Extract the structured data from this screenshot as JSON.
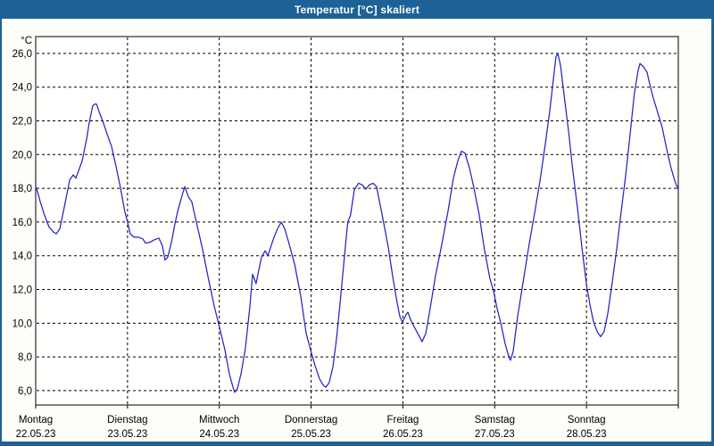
{
  "window": {
    "title": "Temperatur [°C] skaliert",
    "titlebar_color": "#1d6296",
    "border_color": "#1d6296",
    "client_color": "#fdfdfa"
  },
  "chart_data": {
    "type": "line",
    "title": "Temperatur [°C] skaliert",
    "ylabel": "°C",
    "xlabel": "",
    "y_ticks": [
      26,
      24,
      22,
      20,
      18,
      16,
      14,
      12,
      10,
      8,
      6
    ],
    "y_tick_labels": [
      "26,0",
      "24,0",
      "22,0",
      "20,0",
      "18,0",
      "16,0",
      "14,0",
      "12,0",
      "10,0",
      "8,0",
      "6,0"
    ],
    "ylim": [
      5.15,
      27.0
    ],
    "x_unit": "hours",
    "xlim": [
      0,
      168
    ],
    "grid": {
      "horizontal": "dashed",
      "vertical": "dashed at day boundaries"
    },
    "legend": "none",
    "line_color": "#2424c8",
    "x_day_labels": [
      {
        "name": "Montag",
        "date": "22.05.23"
      },
      {
        "name": "Dienstag",
        "date": "23.05.23"
      },
      {
        "name": "Mittwoch",
        "date": "24.05.23"
      },
      {
        "name": "Donnerstag",
        "date": "25.05.23"
      },
      {
        "name": "Freitag",
        "date": "26.05.23"
      },
      {
        "name": "Samstag",
        "date": "27.05.23"
      },
      {
        "name": "Sonntag",
        "date": "28.05.23"
      }
    ],
    "series": [
      {
        "name": "Temperatur",
        "points": [
          [
            0,
            18.1
          ],
          [
            0.6,
            17.7
          ],
          [
            1.2,
            17.2
          ],
          [
            2.3,
            16.4
          ],
          [
            3.5,
            15.7
          ],
          [
            4.7,
            15.4
          ],
          [
            5.4,
            15.3
          ],
          [
            6.3,
            15.6
          ],
          [
            7.5,
            16.9
          ],
          [
            8.9,
            18.5
          ],
          [
            9.8,
            18.8
          ],
          [
            10.5,
            18.6
          ],
          [
            12.1,
            19.6
          ],
          [
            13.3,
            20.9
          ],
          [
            14,
            21.9
          ],
          [
            14.9,
            22.9
          ],
          [
            15.5,
            23.0
          ],
          [
            15.9,
            23.0
          ],
          [
            16.8,
            22.4
          ],
          [
            17.5,
            22.0
          ],
          [
            18.7,
            21.2
          ],
          [
            19.8,
            20.5
          ],
          [
            21,
            19.3
          ],
          [
            22.2,
            18.0
          ],
          [
            23.3,
            16.6
          ],
          [
            24,
            16.0
          ],
          [
            24.7,
            15.3
          ],
          [
            25.7,
            15.1
          ],
          [
            26.8,
            15.1
          ],
          [
            28,
            15.0
          ],
          [
            28.7,
            14.75
          ],
          [
            29.9,
            14.8
          ],
          [
            31,
            14.95
          ],
          [
            32.2,
            15.05
          ],
          [
            33.1,
            14.6
          ],
          [
            33.8,
            13.75
          ],
          [
            34.5,
            13.9
          ],
          [
            35.5,
            14.8
          ],
          [
            36.4,
            15.9
          ],
          [
            37.3,
            16.8
          ],
          [
            38.3,
            17.6
          ],
          [
            39,
            18.1
          ],
          [
            39.9,
            17.5
          ],
          [
            40.8,
            17.2
          ],
          [
            42,
            16.0
          ],
          [
            43.6,
            14.4
          ],
          [
            45,
            12.8
          ],
          [
            46.7,
            11.0
          ],
          [
            48,
            9.8
          ],
          [
            49.5,
            8.4
          ],
          [
            50.6,
            7.0
          ],
          [
            51.6,
            6.2
          ],
          [
            52,
            5.9
          ],
          [
            52.7,
            6.1
          ],
          [
            53.7,
            7.0
          ],
          [
            54.8,
            8.5
          ],
          [
            56,
            11.0
          ],
          [
            56.7,
            12.9
          ],
          [
            57.6,
            12.35
          ],
          [
            59,
            13.9
          ],
          [
            60,
            14.3
          ],
          [
            60.7,
            14.0
          ],
          [
            62.3,
            15.1
          ],
          [
            63.2,
            15.6
          ],
          [
            64.2,
            16.0
          ],
          [
            65.1,
            15.6
          ],
          [
            66,
            14.9
          ],
          [
            67.7,
            13.5
          ],
          [
            69.3,
            11.6
          ],
          [
            70.7,
            9.4
          ],
          [
            72,
            8.3
          ],
          [
            73,
            7.5
          ],
          [
            74.2,
            6.7
          ],
          [
            75.1,
            6.35
          ],
          [
            75.8,
            6.2
          ],
          [
            76.7,
            6.45
          ],
          [
            77.7,
            7.4
          ],
          [
            78.6,
            9.0
          ],
          [
            79.5,
            11.0
          ],
          [
            80.4,
            13.2
          ],
          [
            81.1,
            14.9
          ],
          [
            81.6,
            16.0
          ],
          [
            82.3,
            16.4
          ],
          [
            83.3,
            17.9
          ],
          [
            84.4,
            18.3
          ],
          [
            85.4,
            18.2
          ],
          [
            86.3,
            17.95
          ],
          [
            87.2,
            18.2
          ],
          [
            88.2,
            18.3
          ],
          [
            89.1,
            18.1
          ],
          [
            90.5,
            16.5
          ],
          [
            92.2,
            14.5
          ],
          [
            93.3,
            12.8
          ],
          [
            94.5,
            11.2
          ],
          [
            95.2,
            10.4
          ],
          [
            95.9,
            10.05
          ],
          [
            96.8,
            10.5
          ],
          [
            97.3,
            10.65
          ],
          [
            98.2,
            10.1
          ],
          [
            99.4,
            9.6
          ],
          [
            100.3,
            9.2
          ],
          [
            101,
            8.9
          ],
          [
            102,
            9.4
          ],
          [
            103.1,
            10.85
          ],
          [
            104.5,
            12.8
          ],
          [
            106.2,
            14.7
          ],
          [
            107.8,
            16.65
          ],
          [
            109.2,
            18.6
          ],
          [
            110.4,
            19.65
          ],
          [
            111.3,
            20.2
          ],
          [
            112.2,
            20.1
          ],
          [
            113.4,
            19.2
          ],
          [
            114.5,
            18.1
          ],
          [
            115.9,
            16.5
          ],
          [
            117.3,
            14.4
          ],
          [
            118.7,
            12.7
          ],
          [
            119.7,
            11.9
          ],
          [
            120.6,
            10.9
          ],
          [
            121.6,
            10.0
          ],
          [
            122.7,
            8.8
          ],
          [
            123.7,
            8.0
          ],
          [
            124.1,
            7.8
          ],
          [
            124.8,
            8.3
          ],
          [
            126,
            10.4
          ],
          [
            127.4,
            12.4
          ],
          [
            128.8,
            14.4
          ],
          [
            130.4,
            16.5
          ],
          [
            131.8,
            18.4
          ],
          [
            133.2,
            20.6
          ],
          [
            134.4,
            22.6
          ],
          [
            135.3,
            24.4
          ],
          [
            136,
            25.8
          ],
          [
            136.5,
            26.0
          ],
          [
            137.2,
            25.3
          ],
          [
            138.1,
            23.6
          ],
          [
            139.3,
            21.4
          ],
          [
            140.4,
            19.1
          ],
          [
            141.6,
            16.9
          ],
          [
            142.8,
            14.5
          ],
          [
            144,
            12.3
          ],
          [
            144.9,
            11.1
          ],
          [
            145.8,
            10.1
          ],
          [
            146.8,
            9.5
          ],
          [
            147.7,
            9.2
          ],
          [
            148.6,
            9.5
          ],
          [
            149.6,
            10.6
          ],
          [
            150.7,
            12.4
          ],
          [
            151.9,
            14.4
          ],
          [
            153,
            16.5
          ],
          [
            154.2,
            18.7
          ],
          [
            155.4,
            21.2
          ],
          [
            156.5,
            23.6
          ],
          [
            157.5,
            25.0
          ],
          [
            158,
            25.4
          ],
          [
            158.9,
            25.2
          ],
          [
            159.8,
            24.9
          ],
          [
            160.5,
            24.2
          ],
          [
            161.4,
            23.4
          ],
          [
            162.6,
            22.5
          ],
          [
            163.8,
            21.6
          ],
          [
            164.9,
            20.4
          ],
          [
            166,
            19.3
          ],
          [
            167,
            18.5
          ],
          [
            168,
            17.9
          ]
        ]
      }
    ]
  }
}
